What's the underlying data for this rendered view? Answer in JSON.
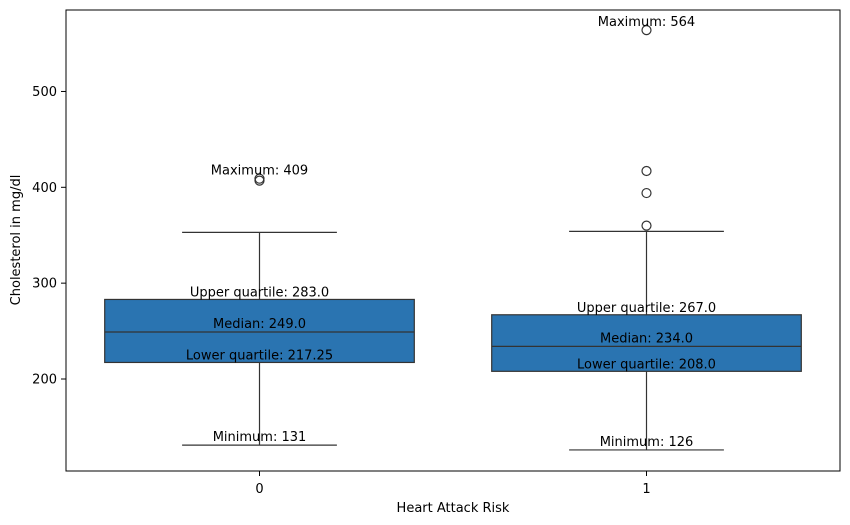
{
  "chart_data": {
    "type": "box",
    "title": "",
    "xlabel": "Heart Attack Risk",
    "ylabel": "Cholesterol in mg/dl",
    "ylim": [
      104,
      585
    ],
    "yticks": [
      200,
      300,
      400,
      500
    ],
    "grid": false,
    "box_color": "#2a74b1",
    "line_color": "#333333",
    "categories": [
      "0",
      "1"
    ],
    "boxes": [
      {
        "category": "0",
        "whisker_low": 131,
        "q1": 217.25,
        "median": 249.0,
        "q3": 283.0,
        "whisker_high": 353,
        "outliers": [
          407,
          409
        ],
        "labels": {
          "max": "Maximum: 409",
          "q3": "Upper quartile: 283.0",
          "median": "Median: 249.0",
          "q1": "Lower quartile: 217.25",
          "min": "Minimum: 131"
        }
      },
      {
        "category": "1",
        "whisker_low": 126,
        "q1": 208.0,
        "median": 234.0,
        "q3": 267.0,
        "whisker_high": 354,
        "outliers": [
          360,
          394,
          417,
          564
        ],
        "labels": {
          "max": "Maximum: 564",
          "q3": "Upper quartile: 267.0",
          "median": "Median: 234.0",
          "q1": "Lower quartile: 208.0",
          "min": "Minimum: 126"
        }
      }
    ]
  }
}
